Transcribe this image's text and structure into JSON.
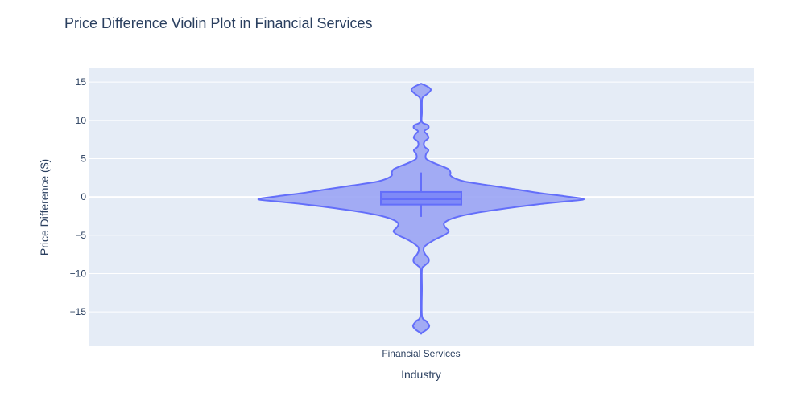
{
  "chart_data": {
    "type": "violin",
    "title": "Price Difference Violin Plot in Financial Services",
    "xlabel": "Industry",
    "ylabel": "Price Difference ($)",
    "categories": [
      "Financial Services"
    ],
    "ylim": [
      -19.5,
      16.8
    ],
    "yticks": [
      15,
      10,
      5,
      0,
      -5,
      -10,
      -15
    ],
    "ytick_labels": [
      "15",
      "10",
      "5",
      "0",
      "−5",
      "−10",
      "−15"
    ],
    "grid": true,
    "colors": {
      "plot_bg": "#e5ecf6",
      "violin_fill": "#9aa4f4",
      "violin_line": "#636efa",
      "box_fill": "#7f8af7",
      "grid": "#ffffff",
      "text": "#2a3f5f"
    },
    "series": [
      {
        "category": "Financial Services",
        "box": {
          "q1": -1.0,
          "median": -0.3,
          "q3": 0.65,
          "whisker_low": -2.6,
          "whisker_high": 3.2
        },
        "range": [
          -17.8,
          14.8
        ],
        "density_profile": [
          [
            14.8,
            0.0
          ],
          [
            14.4,
            0.04
          ],
          [
            14.0,
            0.06
          ],
          [
            13.5,
            0.04
          ],
          [
            13.0,
            0.01
          ],
          [
            12.5,
            0.005
          ],
          [
            11.0,
            0.005
          ],
          [
            9.8,
            0.005
          ],
          [
            9.4,
            0.04
          ],
          [
            9.0,
            0.045
          ],
          [
            8.6,
            0.02
          ],
          [
            8.2,
            0.035
          ],
          [
            7.7,
            0.045
          ],
          [
            7.2,
            0.02
          ],
          [
            6.6,
            0.02
          ],
          [
            6.1,
            0.045
          ],
          [
            5.6,
            0.03
          ],
          [
            5.0,
            0.03
          ],
          [
            4.5,
            0.07
          ],
          [
            4.0,
            0.13
          ],
          [
            3.6,
            0.17
          ],
          [
            3.2,
            0.18
          ],
          [
            2.8,
            0.18
          ],
          [
            2.4,
            0.21
          ],
          [
            2.0,
            0.27
          ],
          [
            1.5,
            0.42
          ],
          [
            1.0,
            0.58
          ],
          [
            0.5,
            0.73
          ],
          [
            0.1,
            0.88
          ],
          [
            -0.3,
            1.0
          ],
          [
            -0.6,
            0.88
          ],
          [
            -1.0,
            0.7
          ],
          [
            -1.5,
            0.52
          ],
          [
            -2.0,
            0.36
          ],
          [
            -2.5,
            0.24
          ],
          [
            -3.0,
            0.17
          ],
          [
            -3.5,
            0.14
          ],
          [
            -4.0,
            0.15
          ],
          [
            -4.5,
            0.17
          ],
          [
            -5.0,
            0.14
          ],
          [
            -5.5,
            0.09
          ],
          [
            -6.0,
            0.05
          ],
          [
            -6.5,
            0.02
          ],
          [
            -7.0,
            0.015
          ],
          [
            -7.5,
            0.025
          ],
          [
            -8.0,
            0.045
          ],
          [
            -8.5,
            0.045
          ],
          [
            -9.0,
            0.02
          ],
          [
            -9.5,
            0.005
          ],
          [
            -12.0,
            0.005
          ],
          [
            -15.5,
            0.005
          ],
          [
            -16.2,
            0.03
          ],
          [
            -16.8,
            0.05
          ],
          [
            -17.3,
            0.035
          ],
          [
            -17.8,
            0.0
          ]
        ]
      }
    ]
  }
}
